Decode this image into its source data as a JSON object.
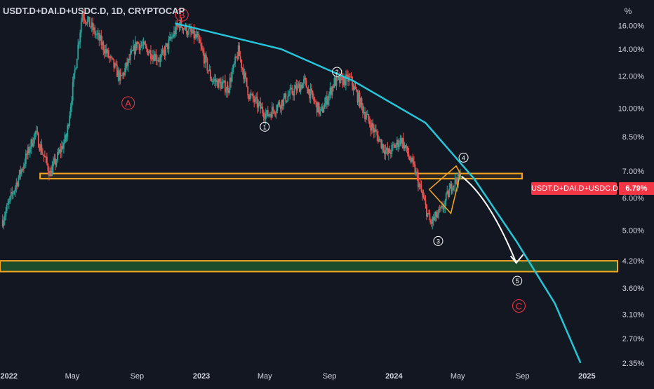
{
  "header": {
    "title": "USDT.D+DAI.D+USDC.D, 1D, CRYPTOCAP",
    "scale_button": "%"
  },
  "price_tag": {
    "symbol": "USDT.D+DAI.D+USDC.D",
    "value": "6.79%"
  },
  "colors": {
    "background": "#131722",
    "up": "#26a69a",
    "down": "#ef5350",
    "arc": "#26c6da",
    "zone": "#f5a623",
    "zone_fill": "#1e4d2b",
    "wave_label": "#f23645",
    "axis_text": "#d1d4dc"
  },
  "annotations": {
    "waves": [
      {
        "label": "A",
        "kind": "letter"
      },
      {
        "label": "B",
        "kind": "letter"
      },
      {
        "label": "C",
        "kind": "letter"
      },
      {
        "label": "1",
        "kind": "number"
      },
      {
        "label": "2",
        "kind": "number"
      },
      {
        "label": "3",
        "kind": "number"
      },
      {
        "label": "4",
        "kind": "number"
      },
      {
        "label": "5",
        "kind": "number"
      }
    ]
  },
  "chart_data": {
    "type": "candlestick",
    "title": "USDT.D+DAI.D+USDC.D, 1D, CRYPTOCAP",
    "y_scale": "log",
    "y_ticks": [
      "16.00%",
      "14.00%",
      "12.00%",
      "10.00%",
      "8.50%",
      "7.00%",
      "6.00%",
      "5.00%",
      "4.20%",
      "3.60%",
      "3.10%",
      "2.70%",
      "2.35%"
    ],
    "x_ticks": [
      "2022",
      "May",
      "Sep",
      "2023",
      "May",
      "Sep",
      "2024",
      "May",
      "Sep",
      "2025"
    ],
    "current_value": 6.79,
    "anchors": [
      {
        "date": "2021-12-20",
        "value": 5.3
      },
      {
        "date": "2022-02-20",
        "value": 8.7
      },
      {
        "date": "2022-03-20",
        "value": 6.9
      },
      {
        "date": "2022-04-20",
        "value": 8.5
      },
      {
        "date": "2022-05-20",
        "value": 17.2
      },
      {
        "date": "2022-06-25",
        "value": 14.5
      },
      {
        "date": "2022-08-01",
        "value": 11.8
      },
      {
        "date": "2022-09-01",
        "value": 14.5
      },
      {
        "date": "2022-10-15",
        "value": 13.2
      },
      {
        "date": "2022-11-20",
        "value": 16.2
      },
      {
        "date": "2022-12-25",
        "value": 14.8
      },
      {
        "date": "2023-01-20",
        "value": 11.8
      },
      {
        "date": "2023-02-20",
        "value": 11.2
      },
      {
        "date": "2023-03-12",
        "value": 13.8
      },
      {
        "date": "2023-04-01",
        "value": 10.8
      },
      {
        "date": "2023-05-05",
        "value": 9.6
      },
      {
        "date": "2023-06-20",
        "value": 10.9
      },
      {
        "date": "2023-07-15",
        "value": 11.6
      },
      {
        "date": "2023-08-15",
        "value": 9.7
      },
      {
        "date": "2023-09-10",
        "value": 11.6
      },
      {
        "date": "2023-10-10",
        "value": 11.8
      },
      {
        "date": "2023-11-10",
        "value": 9.5
      },
      {
        "date": "2023-12-20",
        "value": 7.7
      },
      {
        "date": "2024-01-15",
        "value": 8.4
      },
      {
        "date": "2024-02-10",
        "value": 7.0
      },
      {
        "date": "2024-03-10",
        "value": 5.2
      },
      {
        "date": "2024-04-01",
        "value": 5.6
      },
      {
        "date": "2024-04-20",
        "value": 6.5
      },
      {
        "date": "2024-05-08",
        "value": 6.79
      }
    ],
    "ranges": {
      "x": [
        "2021-12-15",
        "2025-02-28"
      ],
      "y": [
        2.33,
        18.5
      ]
    },
    "overlays": {
      "support_band": {
        "low": 6.7,
        "high": 6.9,
        "from": "2022-03-01",
        "to": "2024-08-31"
      },
      "target_zone": {
        "low": 3.95,
        "high": 4.2
      },
      "projection": {
        "from": {
          "date": "2024-05-08",
          "value": 6.79
        },
        "to": {
          "date": "2024-08-20",
          "value": 4.15
        }
      },
      "curve": [
        {
          "date": "2022-11-12",
          "value": 16.2
        },
        {
          "date": "2023-06-01",
          "value": 14.0
        },
        {
          "date": "2023-10-15",
          "value": 11.7
        },
        {
          "date": "2024-03-01",
          "value": 9.2
        },
        {
          "date": "2024-06-01",
          "value": 6.7
        },
        {
          "date": "2024-08-20",
          "value": 4.7
        },
        {
          "date": "2024-11-01",
          "value": 3.3
        },
        {
          "date": "2024-12-20",
          "value": 2.35
        }
      ]
    }
  }
}
